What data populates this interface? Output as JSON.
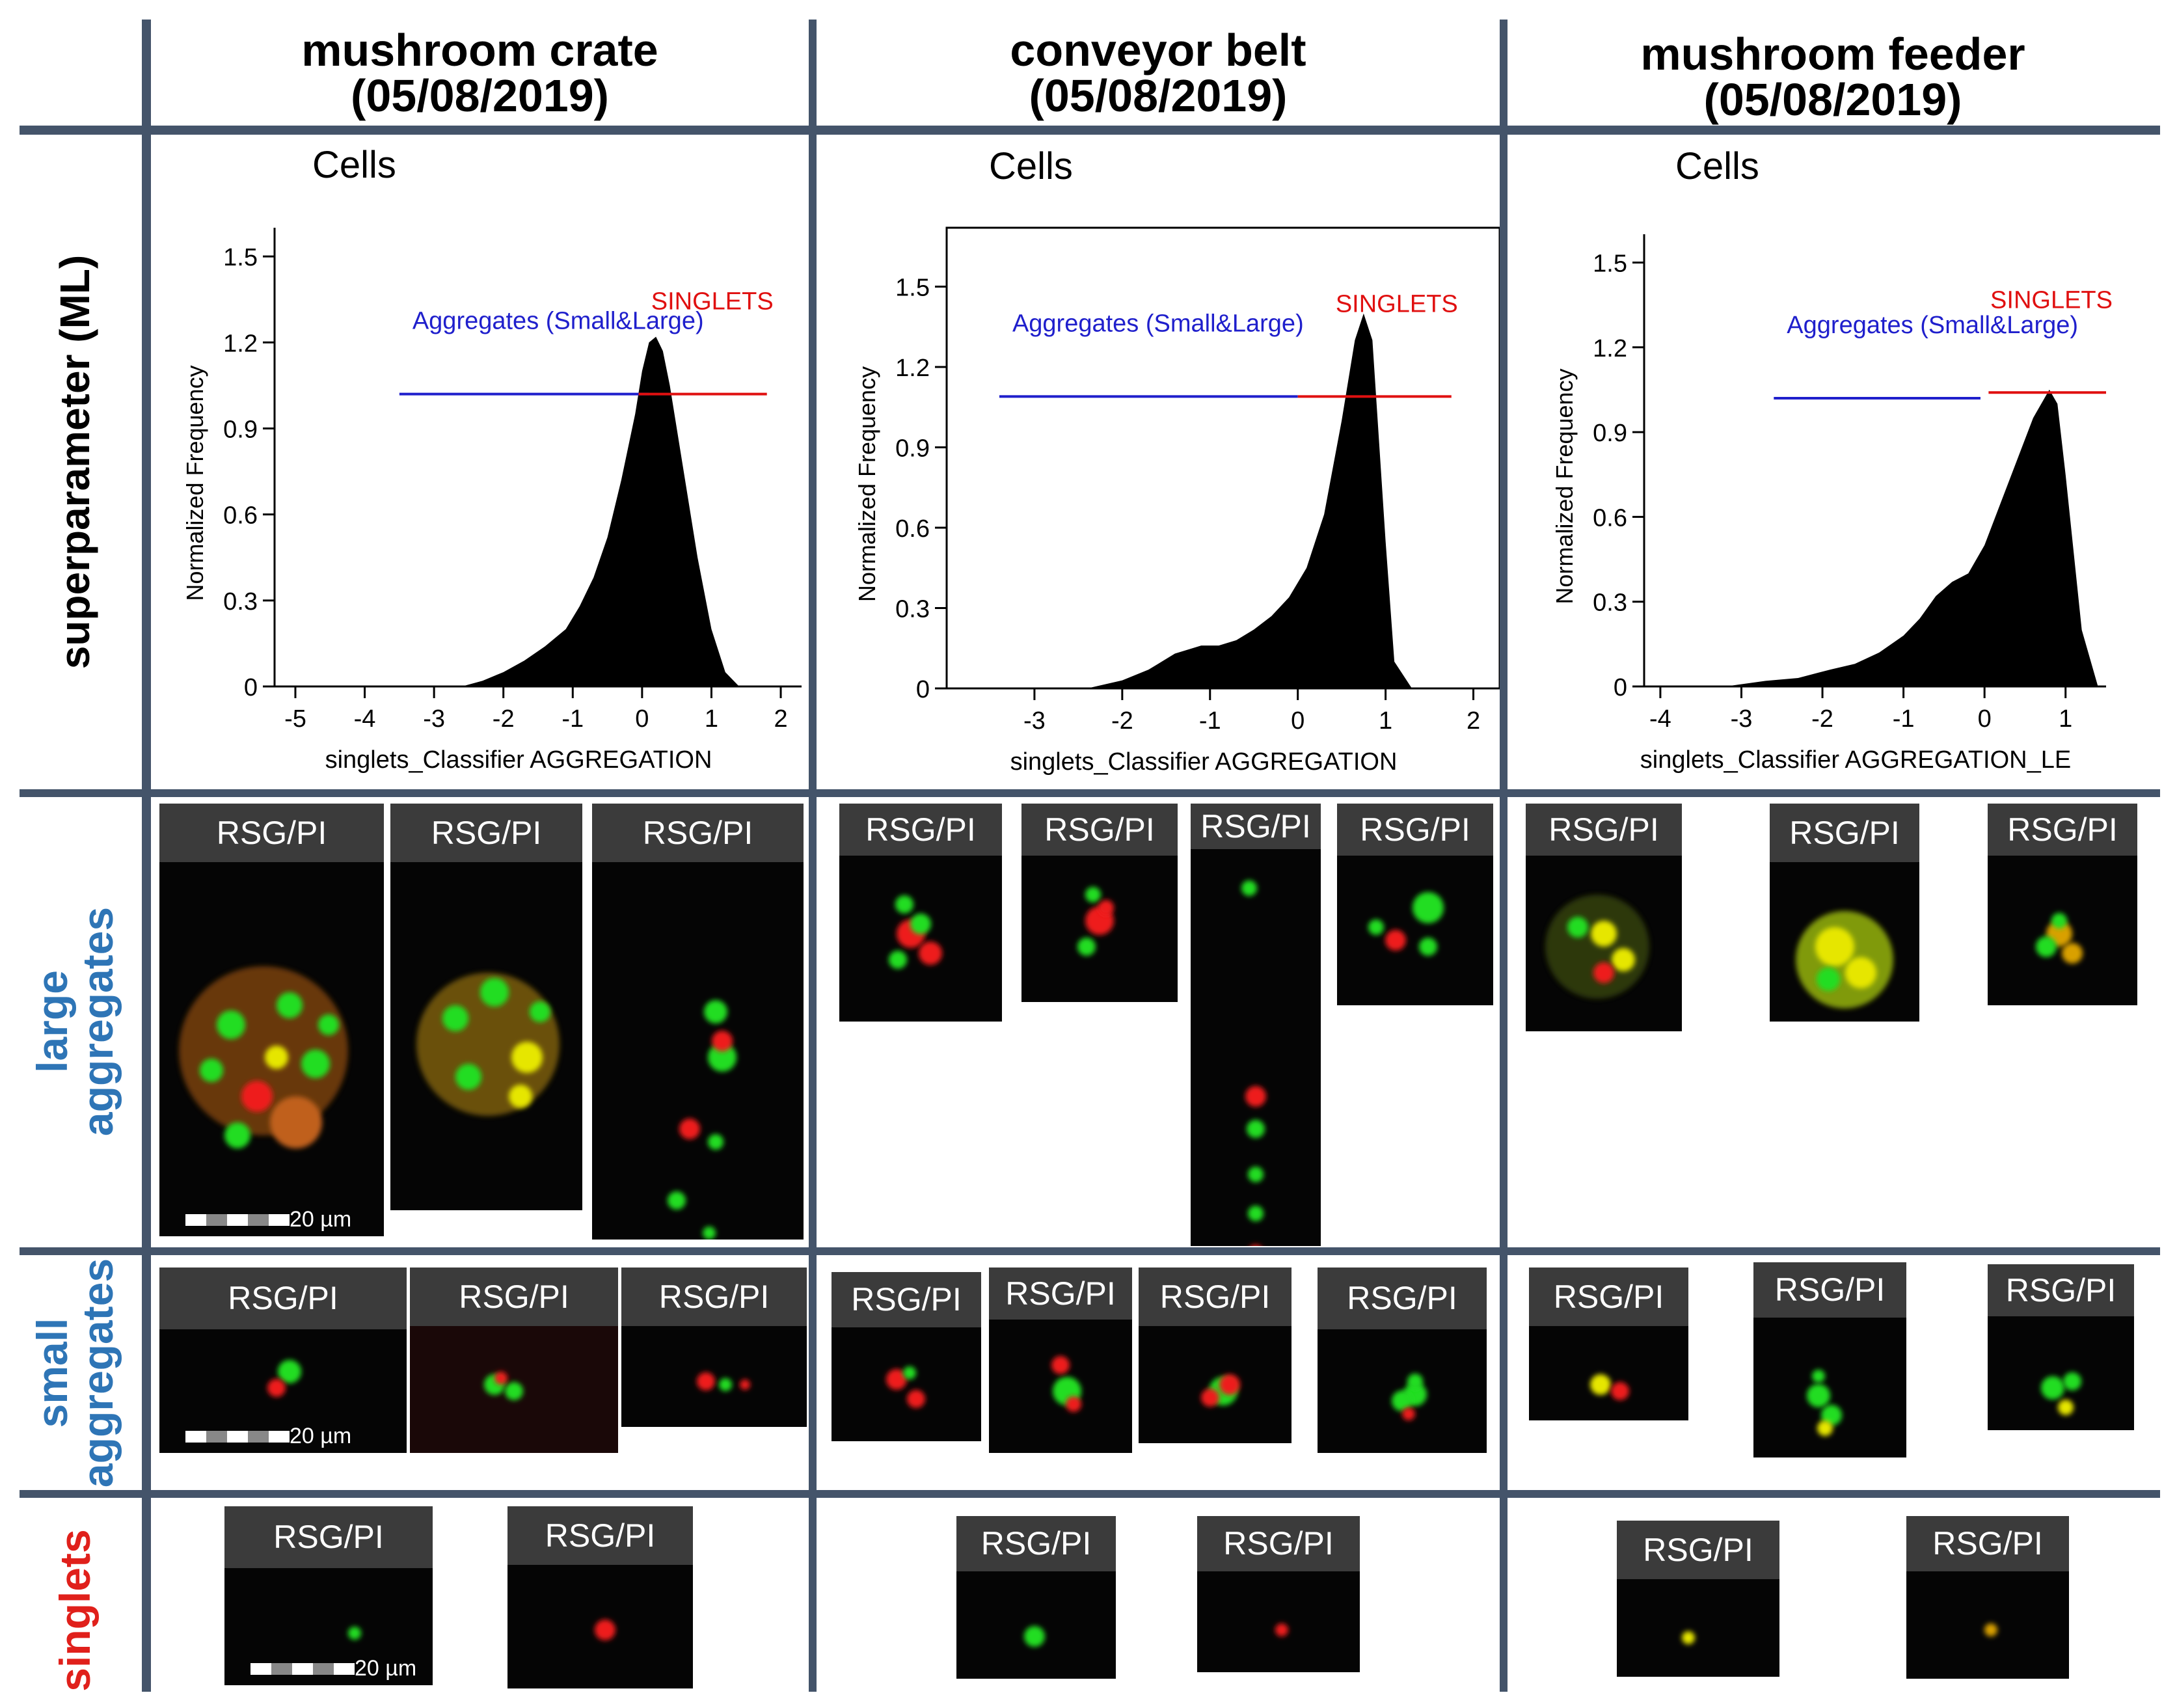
{
  "headers": {
    "col1_line1": "mushroom crate",
    "col1_line2": "(05/08/2019)",
    "col2_line1": "conveyor belt",
    "col2_line2": "(05/08/2019)",
    "col3_line1": "mushroom feeder",
    "col3_line2": "(05/08/2019)"
  },
  "row_labels": {
    "superparameter": "superparameter (ML)",
    "large_1": "large",
    "large_2": "aggregates",
    "small_1": "small",
    "small_2": "aggregates",
    "singlets": "singlets"
  },
  "colors": {
    "grid": "#44546a",
    "row_label_blue": "#2e75b6",
    "row_label_red": "#e0201b",
    "gate_blue": "#1f1fcc",
    "gate_red": "#e01010"
  },
  "tile_label": "RSG/PI",
  "scale_label": "20 µm",
  "chart_data": [
    {
      "type": "area",
      "panel_title": "Cells",
      "xlabel": "singlets_Classifier AGGREGATION",
      "ylabel": "Normalized Frequency",
      "xlim": [
        -5.3,
        2.3
      ],
      "ylim": [
        0,
        1.6
      ],
      "xticks": [
        -5,
        -4,
        -3,
        -2,
        -1,
        0,
        1,
        2
      ],
      "yticks": [
        0,
        0.3,
        0.6,
        0.9,
        1.2,
        1.5
      ],
      "ytick_labels": [
        "0",
        "0.3",
        "0.6",
        "0.9",
        "1.2",
        "1.5"
      ],
      "x": [
        -2.6,
        -2.3,
        -2.0,
        -1.7,
        -1.4,
        -1.1,
        -0.9,
        -0.7,
        -0.5,
        -0.3,
        -0.1,
        0.0,
        0.1,
        0.2,
        0.3,
        0.4,
        0.6,
        0.8,
        1.0,
        1.2,
        1.4
      ],
      "y": [
        0.0,
        0.02,
        0.05,
        0.09,
        0.14,
        0.2,
        0.28,
        0.38,
        0.52,
        0.72,
        0.95,
        1.1,
        1.2,
        1.22,
        1.17,
        1.05,
        0.75,
        0.45,
        0.2,
        0.05,
        0.0
      ],
      "gates": [
        {
          "label": "Aggregates (Small&Large)",
          "from": -3.5,
          "to": 0.1,
          "level": 1.02,
          "color": "#1f1fcc"
        },
        {
          "label": "SINGLETS",
          "from": -0.05,
          "to": 1.8,
          "level": 1.02,
          "color": "#e01010"
        }
      ]
    },
    {
      "type": "area",
      "panel_title": "Cells",
      "xlabel": "singlets_Classifier AGGREGATION",
      "ylabel": "Normalized Frequency",
      "xlim": [
        -4.0,
        2.3
      ],
      "ylim": [
        0,
        1.72
      ],
      "xticks": [
        -3,
        -2,
        -1,
        0,
        1,
        2
      ],
      "yticks": [
        0,
        0.3,
        0.6,
        0.9,
        1.2,
        1.5
      ],
      "ytick_labels": [
        "0",
        "0.3",
        "0.6",
        "0.9",
        "1.2",
        "1.5"
      ],
      "x": [
        -2.4,
        -2.0,
        -1.7,
        -1.4,
        -1.1,
        -0.9,
        -0.7,
        -0.5,
        -0.3,
        -0.1,
        0.1,
        0.3,
        0.5,
        0.65,
        0.75,
        0.85,
        1.0,
        1.1,
        1.3
      ],
      "y": [
        0.0,
        0.03,
        0.07,
        0.13,
        0.16,
        0.16,
        0.18,
        0.22,
        0.27,
        0.34,
        0.45,
        0.65,
        1.0,
        1.3,
        1.4,
        1.3,
        0.55,
        0.1,
        0.0
      ],
      "gates": [
        {
          "label": "Aggregates (Small&Large)",
          "from": -3.4,
          "to": 0.0,
          "level": 1.09,
          "color": "#1f1fcc"
        },
        {
          "label": "SINGLETS",
          "from": 0.0,
          "to": 1.75,
          "level": 1.09,
          "color": "#e01010"
        }
      ]
    },
    {
      "type": "area",
      "panel_title": "Cells",
      "xlabel": "singlets_Classifier AGGREGATION_LE",
      "ylabel": "Normalized Frequency",
      "xlim": [
        -4.2,
        1.5
      ],
      "ylim": [
        0,
        1.6
      ],
      "xticks": [
        -4,
        -3,
        -2,
        -1,
        0,
        1
      ],
      "yticks": [
        0,
        0.3,
        0.6,
        0.9,
        1.2,
        1.5
      ],
      "ytick_labels": [
        "0",
        "0.3",
        "0.6",
        "0.9",
        "1.2",
        "1.5"
      ],
      "x": [
        -3.2,
        -2.7,
        -2.3,
        -1.9,
        -1.6,
        -1.3,
        -1.0,
        -0.8,
        -0.6,
        -0.4,
        -0.2,
        0.0,
        0.2,
        0.4,
        0.6,
        0.8,
        0.9,
        1.0,
        1.2,
        1.4
      ],
      "y": [
        0.0,
        0.02,
        0.03,
        0.06,
        0.08,
        0.12,
        0.18,
        0.24,
        0.32,
        0.37,
        0.4,
        0.5,
        0.65,
        0.8,
        0.95,
        1.05,
        1.0,
        0.75,
        0.2,
        0.0
      ],
      "gates": [
        {
          "label": "Aggregates (Small&Large)",
          "from": -2.6,
          "to": -0.05,
          "level": 1.02,
          "color": "#1f1fcc"
        },
        {
          "label": "SINGLETS",
          "from": 0.05,
          "to": 1.5,
          "level": 1.04,
          "color": "#e01010"
        }
      ]
    }
  ]
}
